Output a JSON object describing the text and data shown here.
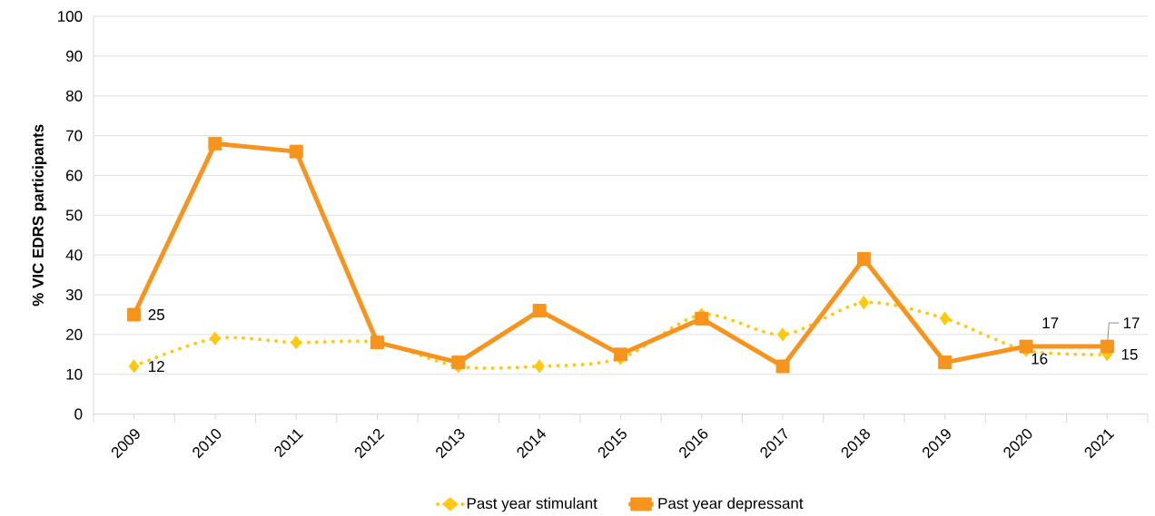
{
  "chart_data": {
    "type": "line",
    "ylabel": "% VIC EDRS participants",
    "categories": [
      "2009",
      "2010",
      "2011",
      "2012",
      "2013",
      "2014",
      "2015",
      "2016",
      "2017",
      "2018",
      "2019",
      "2020",
      "2021"
    ],
    "series": [
      {
        "name": "Past year stimulant",
        "color": "#ffc90e",
        "marker": "diamond",
        "line_style": "dotted",
        "values": [
          12,
          19,
          18,
          18,
          12,
          12,
          14,
          25,
          20,
          28,
          24,
          16,
          15
        ],
        "value_labels": [
          "12",
          null,
          null,
          null,
          null,
          null,
          null,
          null,
          null,
          null,
          null,
          "16",
          "15"
        ]
      },
      {
        "name": "Past year depressant",
        "color": "#f7941d",
        "marker": "square",
        "line_style": "solid",
        "values": [
          25,
          68,
          66,
          18,
          13,
          26,
          15,
          24,
          12,
          39,
          13,
          17,
          17
        ],
        "value_labels": [
          "25",
          null,
          null,
          null,
          null,
          null,
          null,
          null,
          null,
          null,
          null,
          "17",
          "17"
        ]
      }
    ],
    "ylim": [
      0,
      100
    ],
    "yticks": [
      0,
      10,
      20,
      30,
      40,
      50,
      60,
      70,
      80,
      90,
      100
    ],
    "grid": "y",
    "legend": "bottom"
  }
}
